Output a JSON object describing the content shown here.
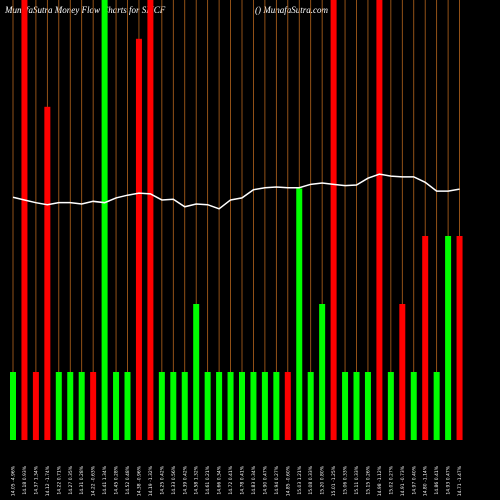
{
  "chart_data": {
    "type": "bar",
    "title": "MunafaSutra  Money Flow  Charts for SMCF",
    "subtitle": "() MunafaSutra.com",
    "categories": [
      "14.05 -4.96%",
      "14.18 0.93%",
      "14.37 1.34%",
      "14.12 -1.74%",
      "14.22 0.71%",
      "14.27 0.35%",
      "14.31 0.28%",
      "14.22 -0.63%",
      "14.41 1.34%",
      "14.45 0.28%",
      "14.52 0.48%",
      "14.38 -0.96%",
      "14.19 -1.32%",
      "14.25 0.42%",
      "14.33 0.56%",
      "14.39 0.42%",
      "14.58 1.32%",
      "14.61 0.21%",
      "14.66 0.34%",
      "14.72 0.41%",
      "14.78 0.41%",
      "14.83 0.34%",
      "14.90 0.47%",
      "14.94 0.27%",
      "14.85 -0.60%",
      "15.03 1.21%",
      "15.08 0.33%",
      "15.20 0.80%",
      "15.01 -1.25%",
      "15.06 0.33%",
      "15.11 0.33%",
      "15.15 0.26%",
      "14.98 -1.12%",
      "15.02 0.27%",
      "14.91 -0.73%",
      "14.97 0.40%",
      "14.80 -1.14%",
      "14.86 0.41%",
      "14.93 0.47%",
      "14.71 -1.47%"
    ],
    "values": [
      1,
      6.5,
      1,
      4.9,
      1,
      1,
      1,
      1,
      6.5,
      1,
      1,
      5.9,
      6.5,
      1,
      1,
      1,
      2,
      1,
      1,
      1,
      1,
      1,
      1,
      1,
      1,
      3.7,
      1,
      2,
      6.5,
      1,
      1,
      1,
      6.5,
      1,
      2,
      1,
      3,
      1,
      3,
      3
    ],
    "colors": [
      "#00ff00",
      "#ff0000",
      "#ff0000",
      "#ff0000",
      "#00ff00",
      "#00ff00",
      "#00ff00",
      "#ff0000",
      "#00ff00",
      "#00ff00",
      "#00ff00",
      "#ff0000",
      "#ff0000",
      "#00ff00",
      "#00ff00",
      "#00ff00",
      "#00ff00",
      "#00ff00",
      "#00ff00",
      "#00ff00",
      "#00ff00",
      "#00ff00",
      "#00ff00",
      "#00ff00",
      "#ff0000",
      "#00ff00",
      "#00ff00",
      "#00ff00",
      "#ff0000",
      "#00ff00",
      "#00ff00",
      "#00ff00",
      "#ff0000",
      "#00ff00",
      "#ff0000",
      "#00ff00",
      "#ff0000",
      "#00ff00",
      "#00ff00",
      "#ff0000"
    ],
    "line": {
      "color": "#ffffff",
      "values": [
        3.57,
        3.53,
        3.49,
        3.46,
        3.49,
        3.49,
        3.47,
        3.51,
        3.49,
        3.56,
        3.6,
        3.63,
        3.62,
        3.53,
        3.54,
        3.43,
        3.47,
        3.46,
        3.4,
        3.53,
        3.56,
        3.68,
        3.71,
        3.72,
        3.71,
        3.71,
        3.76,
        3.78,
        3.76,
        3.74,
        3.75,
        3.85,
        3.91,
        3.88,
        3.87,
        3.87,
        3.79,
        3.66,
        3.66,
        3.69
      ]
    },
    "grid_color": "#b5651d"
  }
}
